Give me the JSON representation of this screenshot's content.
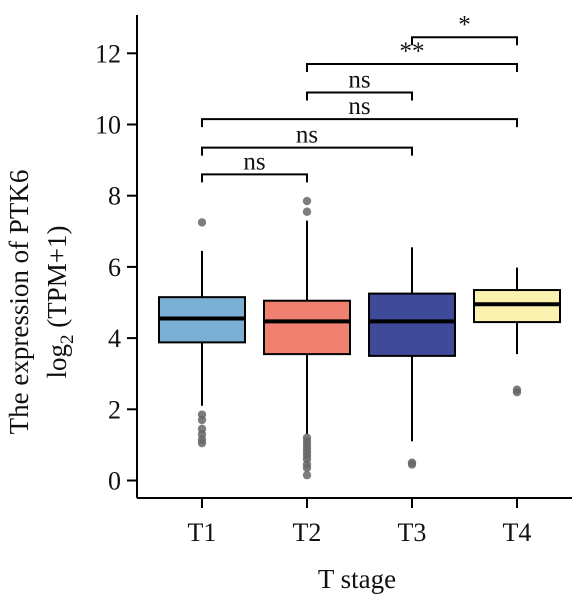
{
  "chart_data": {
    "type": "box",
    "xlabel": "T stage",
    "ylabel_line1": "The expression of PTK6",
    "ylabel_line2_prefix": "log",
    "ylabel_line2_sub": "2",
    "ylabel_line2_suffix": " (TPM+1)",
    "ylim": [
      -0.5,
      13.0
    ],
    "yticks": [
      0,
      2,
      4,
      6,
      8,
      10,
      12
    ],
    "categories": [
      "T1",
      "T2",
      "T3",
      "T4"
    ],
    "groups": [
      {
        "name": "T1",
        "color": "#7BAFD4",
        "whisker_low": 2.1,
        "q1": 3.88,
        "median": 4.55,
        "q3": 5.15,
        "whisker_high": 6.45,
        "outliers": [
          7.25,
          1.85,
          1.7,
          1.45,
          1.3,
          1.15,
          1.05
        ]
      },
      {
        "name": "T2",
        "color": "#F08070",
        "whisker_low": 1.3,
        "q1": 3.55,
        "median": 4.47,
        "q3": 5.05,
        "whisker_high": 7.3,
        "outliers": [
          7.85,
          7.55,
          1.2,
          1.1,
          1.0,
          0.9,
          0.8,
          0.7,
          0.6,
          0.45,
          0.35,
          0.15
        ]
      },
      {
        "name": "T3",
        "color": "#3F4A9A",
        "whisker_low": 1.1,
        "q1": 3.5,
        "median": 4.47,
        "q3": 5.25,
        "whisker_high": 6.55,
        "outliers": [
          0.5,
          0.45
        ]
      },
      {
        "name": "T4",
        "color": "#FAF2AE",
        "whisker_low": 3.55,
        "q1": 4.45,
        "median": 4.95,
        "q3": 5.35,
        "whisker_high": 5.98,
        "outliers": [
          2.55,
          2.48
        ]
      }
    ],
    "comparisons": [
      {
        "from": "T1",
        "to": "T2",
        "label": "ns",
        "y": 8.6
      },
      {
        "from": "T1",
        "to": "T3",
        "label": "ns",
        "y": 9.35
      },
      {
        "from": "T1",
        "to": "T4",
        "label": "ns",
        "y": 10.15
      },
      {
        "from": "T2",
        "to": "T3",
        "label": "ns",
        "y": 10.9
      },
      {
        "from": "T2",
        "to": "T4",
        "label": "**",
        "y": 11.7
      },
      {
        "from": "T3",
        "to": "T4",
        "label": "*",
        "y": 12.45
      }
    ]
  }
}
